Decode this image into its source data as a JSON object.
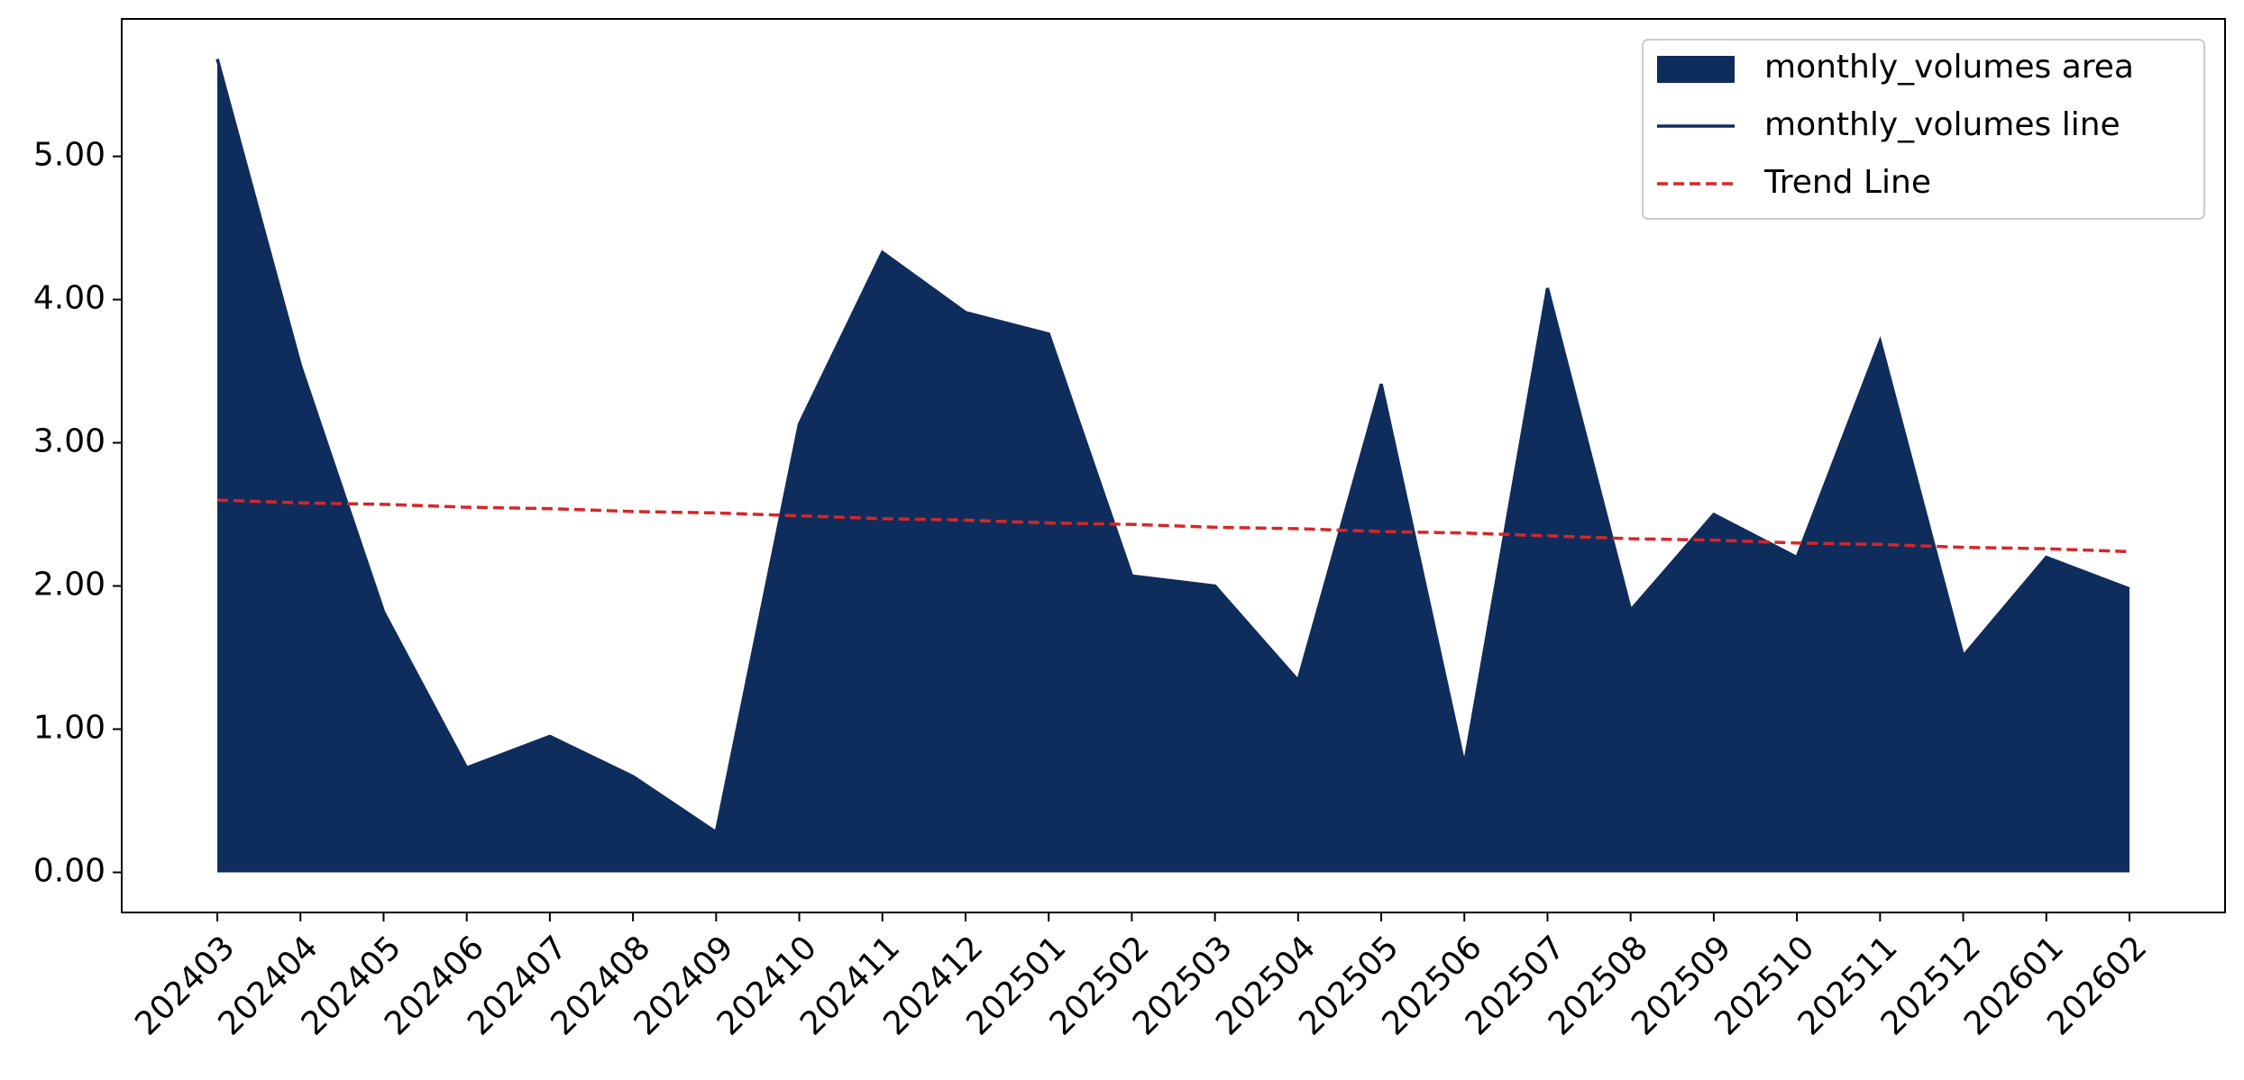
{
  "chart_data": {
    "type": "area",
    "categories": [
      "202403",
      "202404",
      "202405",
      "202406",
      "202407",
      "202408",
      "202409",
      "202410",
      "202411",
      "202412",
      "202501",
      "202502",
      "202503",
      "202504",
      "202505",
      "202506",
      "202507",
      "202508",
      "202509",
      "202510",
      "202511",
      "202512",
      "202601",
      "202602"
    ],
    "series": [
      {
        "name": "monthly_volumes area",
        "style": "area",
        "color": "#0f2d5c",
        "values": [
          5.68,
          3.54,
          1.82,
          0.73,
          0.95,
          0.67,
          0.28,
          3.13,
          4.33,
          3.91,
          3.76,
          2.07,
          2.0,
          1.34,
          3.41,
          0.75,
          4.08,
          1.83,
          2.5,
          2.2,
          3.71,
          1.51,
          2.2,
          1.98
        ]
      },
      {
        "name": "monthly_volumes line",
        "style": "line",
        "color": "#0f2d5c",
        "values": [
          5.68,
          3.54,
          1.82,
          0.73,
          0.95,
          0.67,
          0.28,
          3.13,
          4.33,
          3.91,
          3.76,
          2.07,
          2.0,
          1.34,
          3.41,
          0.75,
          4.08,
          1.83,
          2.5,
          2.2,
          3.71,
          1.51,
          2.2,
          1.98
        ]
      },
      {
        "name": "Trend Line",
        "style": "dashed",
        "color": "#d62728",
        "values": [
          2.6,
          2.58,
          2.57,
          2.55,
          2.54,
          2.52,
          2.51,
          2.49,
          2.47,
          2.46,
          2.44,
          2.43,
          2.41,
          2.4,
          2.38,
          2.37,
          2.35,
          2.33,
          2.32,
          2.3,
          2.29,
          2.27,
          2.26,
          2.24
        ]
      }
    ],
    "ylim": [
      -0.28,
      5.96
    ],
    "yticks": [
      {
        "value": 0,
        "label": "0.00"
      },
      {
        "value": 1,
        "label": "1.00"
      },
      {
        "value": 2,
        "label": "2.00"
      },
      {
        "value": 3,
        "label": "3.00"
      },
      {
        "value": 4,
        "label": "4.00"
      },
      {
        "value": 5,
        "label": "5.00"
      }
    ],
    "legend": "upper right",
    "grid": false
  }
}
